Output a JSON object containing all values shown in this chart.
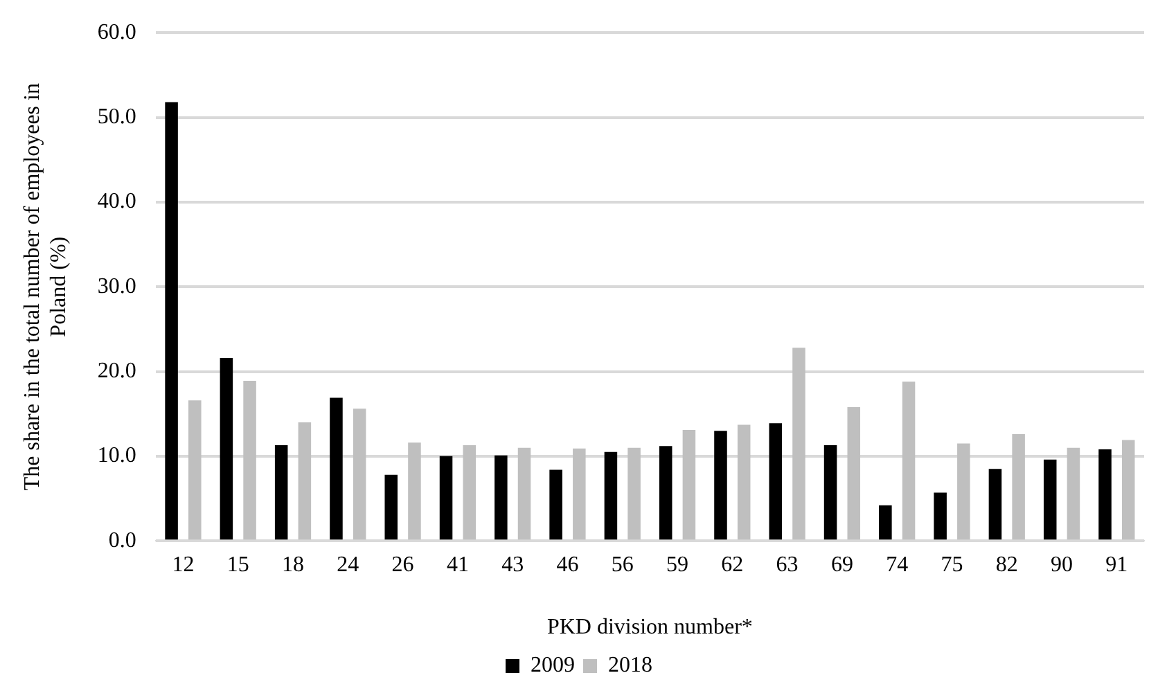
{
  "chart_data": {
    "type": "bar",
    "xlabel": "PKD division number*",
    "ylabel": "The share in the total number of employees in Poland (%)",
    "categories": [
      "12",
      "15",
      "18",
      "24",
      "26",
      "41",
      "43",
      "46",
      "56",
      "59",
      "62",
      "63",
      "69",
      "74",
      "75",
      "82",
      "90",
      "91"
    ],
    "series": [
      {
        "name": "2009",
        "color": "#000000",
        "values": [
          51.8,
          21.6,
          11.3,
          16.9,
          7.8,
          10.0,
          10.1,
          8.4,
          10.5,
          11.2,
          13.0,
          13.9,
          11.3,
          4.2,
          5.7,
          8.5,
          9.6,
          10.8
        ]
      },
      {
        "name": "2018",
        "color": "#bfbfbf",
        "values": [
          16.6,
          18.9,
          14.0,
          15.6,
          11.6,
          11.3,
          11.0,
          10.9,
          11.0,
          13.1,
          13.7,
          22.8,
          15.8,
          18.8,
          11.5,
          12.6,
          11.0,
          11.9
        ]
      }
    ],
    "ylim": [
      0,
      60
    ],
    "yticks": [
      {
        "value": 0,
        "label": "0.0"
      },
      {
        "value": 10,
        "label": "10.0"
      },
      {
        "value": 20,
        "label": "20.0"
      },
      {
        "value": 30,
        "label": "30.0"
      },
      {
        "value": 40,
        "label": "40.0"
      },
      {
        "value": 50,
        "label": "50.0"
      },
      {
        "value": 60,
        "label": "60.0"
      }
    ],
    "grid": "y",
    "legend": "bottom"
  }
}
